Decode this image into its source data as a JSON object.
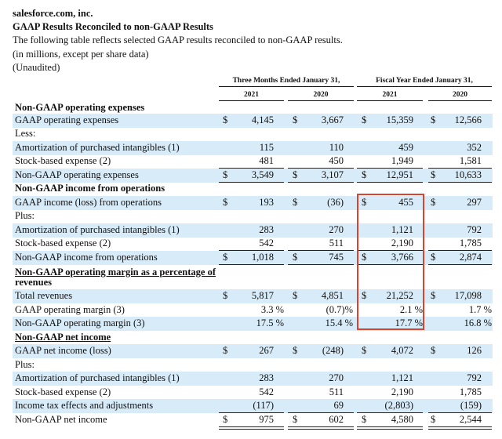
{
  "header": {
    "company": "salesforce.com, inc.",
    "title": "GAAP Results Reconciled to non-GAAP Results",
    "description": "The following table reflects selected GAAP results reconciled to non-GAAP results.",
    "units": "(in millions, except per share data)",
    "audit": "(Unaudited)"
  },
  "columns": {
    "group_three_months": "Three Months Ended January 31,",
    "group_fiscal_year": "Fiscal Year Ended January 31,",
    "years": [
      "2021",
      "2020",
      "2021",
      "2020"
    ]
  },
  "highlight_color": "#d9432f",
  "shade_color": "#d8ebf8",
  "rows": [
    {
      "label": "Non-GAAP operating expenses",
      "kind": "section"
    },
    {
      "label": "GAAP operating expenses",
      "dollar": true,
      "values": [
        "4,145",
        "3,667",
        "15,359",
        "12,566"
      ]
    },
    {
      "label": "Less:"
    },
    {
      "label": "Amortization of purchased intangibles (1)",
      "values": [
        "115",
        "110",
        "459",
        "352"
      ]
    },
    {
      "label": "Stock-based expense (2)",
      "values": [
        "481",
        "450",
        "1,949",
        "1,581"
      ],
      "underline": "single"
    },
    {
      "label": "Non-GAAP operating expenses",
      "dollar": true,
      "values": [
        "3,549",
        "3,107",
        "12,951",
        "10,633"
      ],
      "underline": "single"
    },
    {
      "label": "Non-GAAP income from operations",
      "kind": "section"
    },
    {
      "label": "GAAP income (loss) from operations",
      "dollar": true,
      "values": [
        "193",
        "(36)",
        "455",
        "297"
      ]
    },
    {
      "label": "Plus:"
    },
    {
      "label": "Amortization of purchased intangibles (1)",
      "values": [
        "283",
        "270",
        "1,121",
        "792"
      ]
    },
    {
      "label": "Stock-based expense (2)",
      "values": [
        "542",
        "511",
        "2,190",
        "1,785"
      ],
      "underline": "single"
    },
    {
      "label": "Non-GAAP income from operations",
      "dollar": true,
      "values": [
        "1,018",
        "745",
        "3,766",
        "2,874"
      ],
      "underline": "single"
    },
    {
      "label": "Non-GAAP operating margin as a percentage of",
      "kind": "section-ul"
    },
    {
      "label": "revenues",
      "kind": "section"
    },
    {
      "label": "Total revenues",
      "dollar": true,
      "values": [
        "5,817",
        "4,851",
        "21,252",
        "17,098"
      ]
    },
    {
      "label": "GAAP operating margin (3)",
      "percent": true,
      "values": [
        "3.3 %",
        "(0.7)%",
        "2.1 %",
        "1.7 %"
      ]
    },
    {
      "label": "Non-GAAP operating margin (3)",
      "percent": true,
      "values": [
        "17.5 %",
        "15.4 %",
        "17.7 %",
        "16.8 %"
      ]
    },
    {
      "label": "Non-GAAP net income",
      "kind": "section-ul"
    },
    {
      "label": "GAAP net income (loss)",
      "dollar": true,
      "values": [
        "267",
        "(248)",
        "4,072",
        "126"
      ]
    },
    {
      "label": "Plus:"
    },
    {
      "label": "Amortization of purchased intangibles (1)",
      "values": [
        "283",
        "270",
        "1,121",
        "792"
      ]
    },
    {
      "label": "Stock-based expense (2)",
      "values": [
        "542",
        "511",
        "2,190",
        "1,785"
      ]
    },
    {
      "label": "Income tax effects and adjustments",
      "values": [
        "(117)",
        "69",
        "(2,803)",
        "(159)"
      ],
      "underline": "single"
    },
    {
      "label": "Non-GAAP net income",
      "dollar": true,
      "values": [
        "975",
        "602",
        "4,580",
        "2,544"
      ],
      "underline": "double"
    }
  ],
  "currency_symbol": "$"
}
